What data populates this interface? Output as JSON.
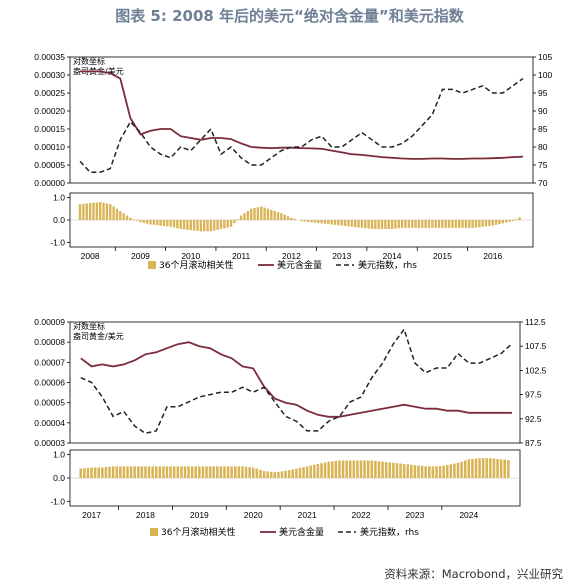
{
  "title": "图表 5:  2008 年后的美元“绝对含金量”和美元指数",
  "source": "资料来源：Macrobond，兴业研究",
  "colors": {
    "gold_line": "#7b2c3b",
    "dxy_line": "#222222",
    "corr_bar": "#d9b354",
    "title": "#6f7f96"
  },
  "chart_data": [
    {
      "type": "line",
      "panel": "2008-2016",
      "annotation": [
        "对数坐标",
        "盎司黄金/美元"
      ],
      "x": [
        2007.8,
        2008.0,
        2008.2,
        2008.4,
        2008.6,
        2008.8,
        2009.0,
        2009.2,
        2009.4,
        2009.6,
        2009.8,
        2010.0,
        2010.2,
        2010.4,
        2010.6,
        2010.8,
        2011.0,
        2011.2,
        2011.4,
        2011.6,
        2011.8,
        2012.0,
        2012.2,
        2012.4,
        2012.6,
        2012.8,
        2013.0,
        2013.2,
        2013.4,
        2013.6,
        2013.8,
        2014.0,
        2014.2,
        2014.4,
        2014.6,
        2014.8,
        2015.0,
        2015.2,
        2015.4,
        2015.6,
        2015.8,
        2016.0,
        2016.2,
        2016.4,
        2016.6
      ],
      "series": [
        {
          "name": "美元含金量",
          "axis": "left",
          "values": [
            0.00031,
            0.00031,
            0.00031,
            0.000305,
            0.00029,
            0.00018,
            0.000135,
            0.000145,
            0.00015,
            0.00015,
            0.00013,
            0.000125,
            0.00012,
            0.000125,
            0.000125,
            0.000122,
            0.00011,
            0.0001,
            9.8e-05,
            9.7e-05,
            9.8e-05,
            9.8e-05,
            9.7e-05,
            9.6e-05,
            9.5e-05,
            9e-05,
            8.5e-05,
            8e-05,
            7.8e-05,
            7.5e-05,
            7.2e-05,
            7e-05,
            6.8e-05,
            6.7e-05,
            6.7e-05,
            6.8e-05,
            6.8e-05,
            6.7e-05,
            6.7e-05,
            6.8e-05,
            6.8e-05,
            6.9e-05,
            7e-05,
            7.2e-05,
            7.3e-05
          ]
        },
        {
          "name": "美元指数，rhs",
          "axis": "right",
          "values": [
            76,
            73,
            73,
            74,
            82,
            87,
            84,
            80,
            78,
            77,
            80,
            79,
            82,
            85,
            78,
            80,
            77,
            75,
            75,
            77,
            79,
            80,
            80,
            82,
            83,
            80,
            80,
            82,
            84,
            82,
            80,
            80,
            81,
            83,
            86,
            89,
            96,
            96,
            95,
            96,
            97,
            95,
            95,
            97,
            99
          ]
        },
        {
          "name": "36个月滚动相关性",
          "axis": "corr",
          "values": [
            0.7,
            0.75,
            0.8,
            0.7,
            0.4,
            0.1,
            -0.1,
            -0.2,
            -0.25,
            -0.3,
            -0.4,
            -0.45,
            -0.5,
            -0.5,
            -0.4,
            -0.3,
            0.2,
            0.5,
            0.6,
            0.45,
            0.3,
            0.1,
            -0.05,
            -0.1,
            -0.15,
            -0.2,
            -0.25,
            -0.3,
            -0.35,
            -0.4,
            -0.4,
            -0.4,
            -0.35,
            -0.35,
            -0.35,
            -0.35,
            -0.35,
            -0.35,
            -0.35,
            -0.35,
            -0.3,
            -0.25,
            -0.15,
            -0.05,
            0.2
          ]
        }
      ],
      "left_axis": {
        "ticks": [
          "0.00000",
          "0.00005",
          "0.00010",
          "0.00015",
          "0.00020",
          "0.00025",
          "0.00030",
          "0.00035"
        ],
        "ylim": [
          0,
          0.00035
        ]
      },
      "right_axis": {
        "ticks": [
          "70",
          "75",
          "80",
          "85",
          "90",
          "95",
          "100",
          "105"
        ],
        "ylim": [
          70,
          105
        ]
      },
      "corr_axis": {
        "ticks": [
          "1.0",
          "0.0",
          "-1.0"
        ],
        "ylim": [
          -1.2,
          1.2
        ]
      },
      "xticks": [
        "2008",
        "2009",
        "2010",
        "2011",
        "2012",
        "2013",
        "2014",
        "2015",
        "2016"
      ],
      "legend": [
        "36个月滚动相关性",
        "美元含金量",
        "美元指数，rhs"
      ],
      "legend_position": "bottom"
    },
    {
      "type": "line",
      "panel": "2017-2024",
      "annotation": [
        "对数坐标",
        "盎司黄金/美元"
      ],
      "x": [
        2016.8,
        2017.0,
        2017.2,
        2017.4,
        2017.6,
        2017.8,
        2018.0,
        2018.2,
        2018.4,
        2018.6,
        2018.8,
        2019.0,
        2019.2,
        2019.4,
        2019.6,
        2019.8,
        2020.0,
        2020.2,
        2020.4,
        2020.6,
        2020.8,
        2021.0,
        2021.2,
        2021.4,
        2021.6,
        2021.8,
        2022.0,
        2022.2,
        2022.4,
        2022.6,
        2022.8,
        2023.0,
        2023.2,
        2023.4,
        2023.6,
        2023.8,
        2024.0,
        2024.2,
        2024.4,
        2024.6,
        2024.8
      ],
      "series": [
        {
          "name": "美元含金量",
          "axis": "left",
          "values": [
            7.2e-05,
            6.8e-05,
            6.9e-05,
            6.8e-05,
            6.9e-05,
            7.1e-05,
            7.4e-05,
            7.5e-05,
            7.7e-05,
            7.9e-05,
            8e-05,
            7.8e-05,
            7.7e-05,
            7.4e-05,
            7.2e-05,
            6.8e-05,
            6.7e-05,
            5.8e-05,
            5.2e-05,
            5e-05,
            4.9e-05,
            4.6e-05,
            4.4e-05,
            4.3e-05,
            4.3e-05,
            4.4e-05,
            4.5e-05,
            4.6e-05,
            4.7e-05,
            4.8e-05,
            4.9e-05,
            4.8e-05,
            4.7e-05,
            4.7e-05,
            4.6e-05,
            4.6e-05,
            4.5e-05,
            4.5e-05,
            4.5e-05,
            4.5e-05,
            4.5e-05
          ]
        },
        {
          "name": "美元指数，rhs",
          "axis": "right",
          "values": [
            101,
            100,
            97,
            93,
            94,
            91,
            89.5,
            90,
            95,
            95,
            96,
            97,
            97.5,
            98,
            98,
            99,
            98,
            99,
            96,
            93,
            92,
            90,
            90,
            92,
            93,
            96,
            97,
            101,
            104,
            108,
            111,
            104,
            102,
            103,
            103,
            106,
            104,
            104,
            105,
            106,
            108
          ]
        },
        {
          "name": "36个月滚动相关性",
          "axis": "corr",
          "values": [
            0.4,
            0.45,
            0.45,
            0.5,
            0.5,
            0.5,
            0.5,
            0.5,
            0.5,
            0.5,
            0.5,
            0.5,
            0.5,
            0.5,
            0.5,
            0.5,
            0.45,
            0.3,
            0.25,
            0.3,
            0.4,
            0.5,
            0.6,
            0.7,
            0.75,
            0.75,
            0.75,
            0.75,
            0.7,
            0.65,
            0.6,
            0.55,
            0.5,
            0.5,
            0.55,
            0.65,
            0.8,
            0.85,
            0.85,
            0.8,
            0.75
          ]
        }
      ],
      "left_axis": {
        "ticks": [
          "0.00003",
          "0.00004",
          "0.00005",
          "0.00006",
          "0.00007",
          "0.00008",
          "0.00009"
        ],
        "ylim": [
          3e-05,
          9e-05
        ]
      },
      "right_axis": {
        "ticks": [
          "87.5",
          "92.5",
          "97.5",
          "102.5",
          "107.5",
          "112.5"
        ],
        "ylim": [
          87.5,
          112.5
        ]
      },
      "corr_axis": {
        "ticks": [
          "1.0",
          "0.0",
          "-1.0"
        ],
        "ylim": [
          -1.2,
          1.2
        ]
      },
      "xticks": [
        "2017",
        "2018",
        "2019",
        "2020",
        "2021",
        "2022",
        "2023",
        "2024"
      ],
      "legend": [
        "36个月滚动相关性",
        "美元含金量",
        "美元指数，rhs"
      ],
      "legend_position": "bottom"
    }
  ]
}
